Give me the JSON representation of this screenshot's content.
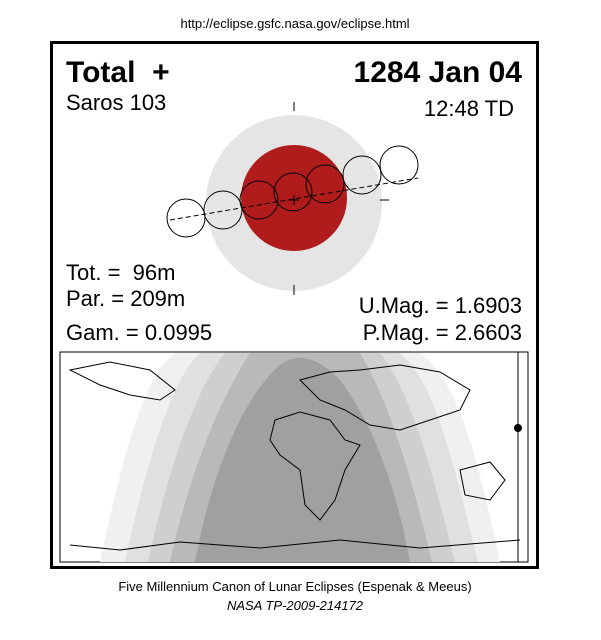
{
  "header": {
    "url": "http://eclipse.gsfc.nasa.gov/eclipse.html"
  },
  "eclipse": {
    "type": "Total  +",
    "date": "1284 Jan 04",
    "saros": "Saros 103",
    "time": "12:48 TD",
    "total_duration": "Tot. =  96m",
    "partial_duration": "Par. = 209m",
    "gamma": "Gam. = 0.0995",
    "umbral_magnitude": "U.Mag. = 1.6903",
    "penumbral_magnitude": "P.Mag. = 2.6603"
  },
  "footer": {
    "title": "Five Millennium Canon of Lunar Eclipses (Espenak & Meeus)",
    "reference": "NASA TP-2009-214172"
  }
}
